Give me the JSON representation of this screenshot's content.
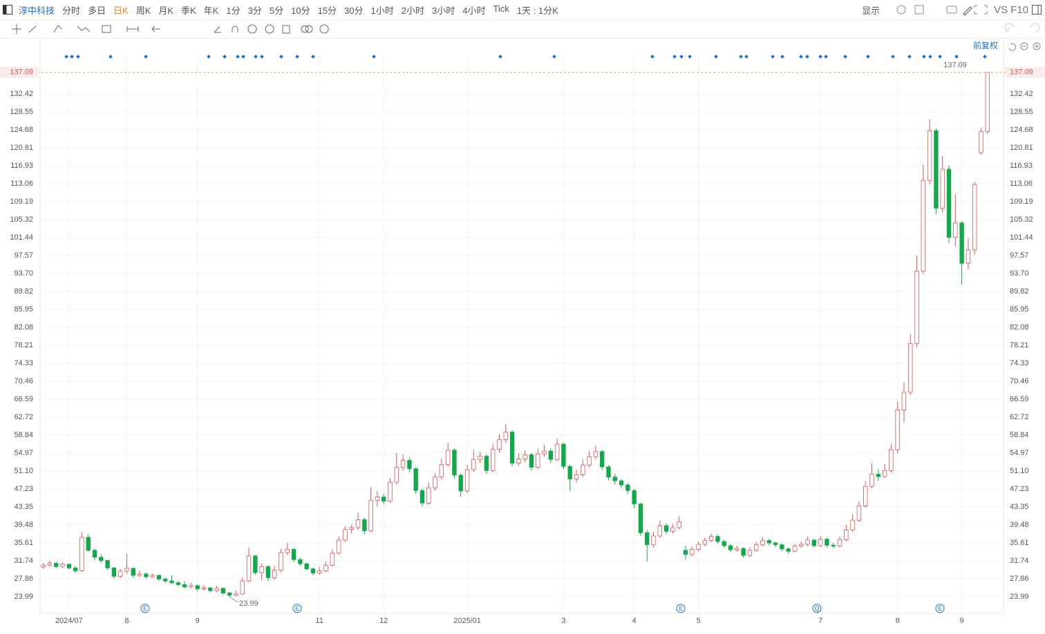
{
  "toolbar": {
    "stock": "淳中科技",
    "periods": [
      "分时",
      "多日",
      "日K",
      "周K",
      "月K",
      "季K",
      "年K",
      "1分",
      "3分",
      "5分",
      "10分",
      "15分",
      "30分",
      "1小时",
      "2小时",
      "3小时",
      "4小时",
      "Tick",
      "1天 : 1分K"
    ],
    "active_period_index": 2,
    "display": "显示",
    "vs": "VS",
    "f10": "F10",
    "adjust": "前复权"
  },
  "events": [
    "E",
    "E",
    "E",
    "Q",
    "E"
  ],
  "chart_data": {
    "type": "candlestick",
    "up_color": "#e8504f",
    "down_color": "#13a84b",
    "grid": true,
    "ylim": [
      20.42,
      140.78
    ],
    "yticks": [
      23.99,
      27.86,
      31.74,
      35.61,
      39.48,
      43.35,
      47.23,
      {
        "value": 51.1,
        "label": "51.10"
      },
      54.97,
      58.84,
      62.72,
      66.59,
      70.46,
      74.33,
      78.21,
      82.08,
      85.95,
      89.82,
      {
        "value": 93.7,
        "label": "93.70"
      },
      97.57,
      101.44,
      105.32,
      109.19,
      113.06,
      116.93,
      120.81,
      124.68,
      128.55,
      132.42
    ],
    "categories": [
      null,
      null,
      null,
      null,
      "2024/07",
      null,
      null,
      null,
      null,
      null,
      null,
      null,
      null,
      "8",
      null,
      null,
      null,
      null,
      null,
      null,
      null,
      null,
      null,
      null,
      "9",
      null,
      null,
      null,
      null,
      null,
      null,
      null,
      null,
      null,
      null,
      null,
      null,
      null,
      null,
      null,
      null,
      null,
      null,
      "11",
      null,
      null,
      null,
      null,
      null,
      null,
      null,
      null,
      null,
      "12",
      null,
      null,
      null,
      null,
      null,
      null,
      null,
      null,
      null,
      null,
      null,
      null,
      "2025/01",
      null,
      null,
      null,
      null,
      null,
      null,
      null,
      null,
      null,
      null,
      null,
      null,
      null,
      null,
      "3",
      null,
      null,
      null,
      null,
      null,
      null,
      null,
      null,
      null,
      null,
      "4",
      null,
      null,
      null,
      null,
      null,
      null,
      null,
      null,
      null,
      "5",
      null,
      null,
      null,
      null,
      null,
      null,
      null,
      null,
      null,
      null,
      null,
      null,
      null,
      null,
      null,
      null,
      null,
      null,
      "7",
      null,
      null,
      null,
      null,
      null,
      null,
      null,
      null,
      null,
      null,
      null,
      "8",
      null,
      null,
      null,
      null,
      null,
      null,
      null,
      null,
      null,
      "9",
      null,
      null,
      null,
      null
    ],
    "open": [
      30.4,
      30.8,
      31.2,
      30.5,
      31.0,
      30.2,
      29.6,
      36.8,
      34.0,
      32.5,
      31.8,
      30.2,
      28.4,
      29.5,
      30.1,
      28.6,
      28.9,
      28.3,
      28.6,
      27.8,
      27.4,
      27.0,
      26.6,
      26.1,
      26.4,
      25.7,
      25.9,
      25.3,
      25.8,
      24.8,
      24.3,
      24.6,
      27.4,
      32.8,
      29.2,
      30.5,
      28.1,
      29.7,
      33.5,
      34.2,
      32.0,
      31.1,
      30.0,
      29.1,
      29.6,
      30.8,
      33.4,
      36.2,
      38.5,
      38.9,
      40.6,
      38.2,
      44.8,
      45.5,
      44.6,
      48.7,
      51.9,
      53.4,
      51.6,
      46.9,
      44.2,
      47.5,
      49.8,
      52.5,
      55.6,
      50.2,
      46.8,
      51.4,
      53.6,
      54.3,
      51.2,
      55.8,
      57.9,
      59.5,
      52.8,
      53.7,
      54.6,
      51.9,
      54.8,
      55.4,
      53.6,
      56.9,
      52.1,
      49.4,
      50.3,
      52.4,
      54.2,
      55.3,
      52.0,
      49.8,
      49.0,
      48.1,
      46.9,
      44.0,
      37.8,
      35.2,
      37.1,
      39.3,
      38.1,
      38.9,
      34.0,
      33.1,
      34.2,
      35.3,
      36.1,
      37.0,
      35.9,
      35.0,
      34.1,
      34.4,
      32.9,
      34.0,
      35.2,
      36.1,
      35.6,
      35.2,
      34.3,
      33.8,
      34.9,
      35.3,
      36.2,
      35.0,
      36.4,
      35.1,
      34.9,
      36.3,
      38.4,
      40.5,
      43.6,
      47.8,
      50.4,
      49.9,
      51.2,
      55.7,
      64.3,
      68.1,
      78.6,
      94.2,
      113.8,
      124.5,
      107.8,
      116.2,
      101.5,
      104.6,
      95.9,
      98.8,
      119.8,
      124.3
    ],
    "close": [
      30.8,
      31.2,
      30.5,
      31.0,
      30.2,
      29.6,
      36.8,
      34.0,
      32.5,
      31.8,
      30.2,
      28.4,
      29.5,
      30.1,
      28.6,
      28.9,
      28.3,
      28.6,
      27.8,
      27.4,
      27.0,
      26.6,
      26.1,
      26.4,
      25.7,
      25.9,
      25.3,
      25.8,
      24.8,
      24.3,
      24.6,
      27.4,
      32.8,
      29.2,
      30.5,
      28.1,
      29.7,
      33.5,
      34.2,
      32.0,
      31.1,
      30.0,
      29.1,
      29.6,
      30.8,
      33.4,
      36.2,
      38.5,
      38.9,
      40.6,
      38.2,
      44.8,
      45.5,
      44.6,
      48.7,
      51.9,
      53.4,
      51.6,
      46.9,
      44.2,
      47.5,
      49.8,
      52.5,
      55.6,
      50.2,
      46.8,
      51.4,
      53.6,
      54.3,
      51.2,
      55.8,
      57.9,
      59.5,
      52.8,
      53.7,
      54.6,
      51.9,
      54.8,
      55.4,
      53.6,
      56.9,
      52.1,
      49.4,
      50.3,
      52.4,
      54.2,
      55.3,
      52.0,
      49.8,
      49.0,
      48.1,
      46.9,
      44.0,
      37.8,
      35.2,
      37.1,
      39.3,
      38.1,
      38.9,
      40.2,
      33.1,
      34.2,
      35.3,
      36.1,
      37.0,
      35.9,
      35.0,
      34.1,
      34.4,
      32.9,
      34.0,
      35.2,
      36.1,
      35.6,
      35.2,
      34.3,
      33.8,
      34.9,
      35.3,
      36.2,
      35.0,
      36.4,
      35.1,
      34.9,
      36.3,
      38.4,
      40.5,
      43.6,
      47.8,
      50.4,
      49.9,
      51.2,
      55.7,
      64.3,
      68.1,
      78.6,
      94.2,
      113.8,
      124.5,
      107.8,
      116.2,
      101.5,
      104.6,
      95.9,
      98.8,
      112.9,
      124.3,
      137.09
    ],
    "high": [
      31.3,
      31.8,
      31.5,
      31.4,
      31.2,
      30.6,
      37.9,
      37.5,
      34.4,
      33.1,
      32.0,
      30.4,
      30.0,
      33.2,
      30.3,
      29.6,
      29.2,
      29.0,
      28.8,
      28.2,
      28.6,
      27.5,
      27.3,
      27.0,
      26.6,
      26.5,
      26.1,
      26.3,
      26.0,
      25.0,
      25.3,
      28.2,
      34.6,
      33.0,
      31.2,
      30.8,
      30.6,
      34.3,
      35.6,
      34.6,
      32.4,
      31.4,
      30.3,
      30.4,
      31.6,
      34.2,
      37.0,
      39.2,
      39.6,
      42.1,
      41.0,
      47.6,
      46.8,
      46.2,
      49.6,
      55.0,
      54.7,
      54.0,
      52.0,
      47.3,
      48.6,
      50.6,
      53.8,
      57.2,
      56.0,
      50.6,
      52.5,
      55.7,
      55.2,
      54.7,
      57.0,
      59.0,
      61.2,
      59.9,
      55.0,
      55.6,
      55.0,
      56.0,
      56.8,
      56.0,
      58.1,
      57.2,
      52.5,
      51.4,
      53.6,
      55.4,
      56.6,
      55.7,
      52.4,
      50.5,
      49.4,
      48.5,
      47.2,
      44.3,
      38.4,
      38.0,
      40.4,
      39.8,
      39.7,
      41.3,
      35.0,
      34.8,
      35.9,
      36.7,
      37.6,
      37.3,
      36.3,
      35.4,
      35.0,
      34.7,
      34.6,
      35.8,
      36.8,
      36.5,
      35.9,
      35.5,
      34.6,
      35.4,
      35.9,
      37.0,
      36.5,
      37.1,
      36.7,
      35.6,
      37.0,
      39.5,
      41.8,
      44.6,
      48.9,
      52.8,
      51.5,
      52.6,
      57.0,
      66.0,
      70.2,
      80.6,
      97.5,
      117.2,
      127.0,
      125.0,
      119.0,
      117.0,
      110.8,
      105.0,
      101.2,
      113.5,
      125.1,
      137.09
    ],
    "low": [
      30.0,
      30.5,
      30.1,
      30.2,
      29.9,
      29.1,
      29.4,
      33.6,
      31.9,
      31.2,
      29.8,
      27.9,
      28.0,
      29.0,
      28.1,
      28.2,
      27.9,
      28.0,
      27.4,
      27.0,
      26.7,
      26.2,
      25.7,
      25.8,
      25.2,
      25.3,
      24.9,
      25.0,
      24.4,
      23.99,
      24.1,
      24.4,
      27.1,
      28.7,
      27.5,
      27.4,
      27.6,
      29.3,
      33.0,
      31.5,
      30.6,
      29.6,
      28.6,
      28.7,
      29.3,
      30.5,
      33.0,
      35.8,
      37.6,
      38.4,
      37.5,
      37.9,
      43.4,
      43.9,
      44.2,
      48.2,
      51.2,
      50.8,
      46.2,
      43.5,
      43.8,
      46.9,
      49.2,
      52.0,
      49.5,
      45.6,
      46.3,
      50.9,
      52.8,
      50.5,
      50.8,
      55.1,
      57.2,
      52.1,
      52.2,
      53.0,
      51.2,
      51.5,
      54.2,
      52.8,
      53.2,
      51.5,
      46.8,
      48.6,
      49.8,
      51.9,
      53.6,
      51.3,
      49.1,
      48.2,
      47.4,
      46.2,
      43.1,
      37.1,
      31.6,
      34.6,
      36.7,
      37.5,
      37.6,
      38.5,
      31.9,
      32.7,
      33.8,
      34.9,
      35.7,
      35.4,
      34.5,
      33.6,
      33.7,
      32.4,
      32.6,
      33.7,
      34.9,
      35.1,
      34.7,
      33.8,
      33.2,
      33.5,
      34.5,
      34.9,
      34.6,
      34.7,
      34.6,
      34.4,
      34.6,
      35.9,
      38.0,
      40.1,
      43.2,
      47.4,
      49.0,
      49.6,
      50.8,
      54.9,
      61.6,
      67.5,
      77.8,
      93.6,
      112.9,
      106.5,
      106.9,
      100.2,
      99.5,
      91.3,
      94.6,
      97.8,
      119.3,
      123.8
    ]
  }
}
